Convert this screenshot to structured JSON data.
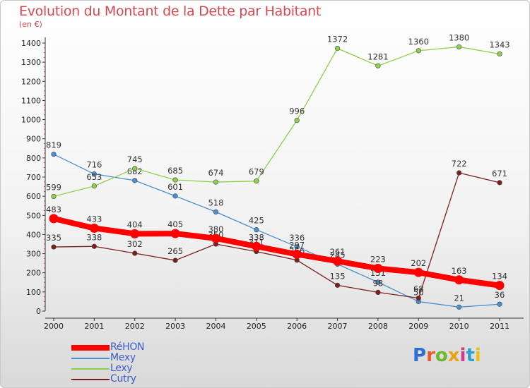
{
  "chart_data": {
    "type": "line",
    "title": "Evolution du Montant de la Dette par Habitant",
    "subtitle": "(en €)",
    "x": [
      "2000",
      "2001",
      "2002",
      "2003",
      "2004",
      "2005",
      "2006",
      "2007",
      "2008",
      "2009",
      "2010",
      "2011"
    ],
    "ylim": [
      0,
      1400
    ],
    "yticks": [
      0,
      100,
      200,
      300,
      400,
      500,
      600,
      700,
      800,
      900,
      1000,
      1100,
      1200,
      1300,
      1400
    ],
    "grid": false,
    "legend_position": "bottom-left",
    "series": [
      {
        "name": "Mexy",
        "color": "#4a90d0",
        "values": [
          819,
          716,
          682,
          601,
          518,
          425,
          336,
          245,
          151,
          50,
          21,
          36
        ]
      },
      {
        "name": "Lexy",
        "color": "#8dd04a",
        "values": [
          599,
          653,
          745,
          685,
          674,
          679,
          996,
          1372,
          1281,
          1360,
          1380,
          1343
        ]
      },
      {
        "name": "Cutry",
        "color": "#7a1f1f",
        "values": [
          335,
          338,
          302,
          265,
          350,
          311,
          266,
          135,
          98,
          68,
          722,
          671
        ]
      },
      {
        "name": "RéHON",
        "color": "#ff0000",
        "values": [
          483,
          433,
          404,
          405,
          380,
          338,
          297,
          261,
          223,
          202,
          163,
          134
        ]
      }
    ],
    "legend_order": [
      "RéHON",
      "Mexy",
      "Lexy",
      "Cutry"
    ]
  },
  "branding": {
    "logo_text": "Proxiti",
    "logo_letter_colors": [
      "#2f6fd0",
      "#e85a2a",
      "#6ab82f",
      "#e8a21a",
      "#d03a8a",
      "#2f9fd0",
      "#e8c21a"
    ]
  }
}
